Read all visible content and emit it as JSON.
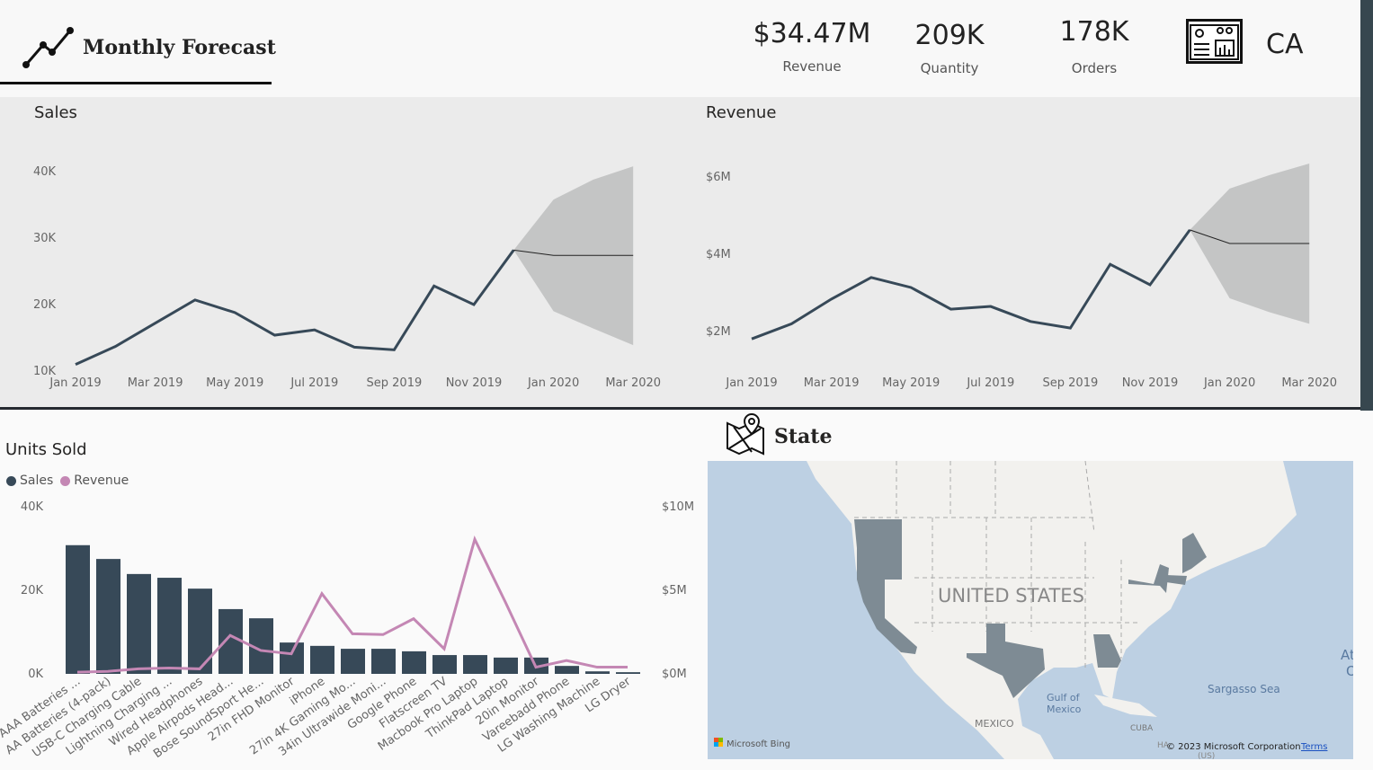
{
  "header": {
    "title": "Monthly Forecast",
    "kpis": [
      {
        "value": "$34.47M",
        "label": "Revenue"
      },
      {
        "value": "209K",
        "label": "Quantity"
      },
      {
        "value": "178K",
        "label": "Orders"
      }
    ],
    "state_code": "CA",
    "icons": [
      "line-chart-icon",
      "dashboard-icon"
    ]
  },
  "chart_data": [
    {
      "type": "line",
      "title": "Sales",
      "x": [
        "Jan 2019",
        "Feb 2019",
        "Mar 2019",
        "Apr 2019",
        "May 2019",
        "Jun 2019",
        "Jul 2019",
        "Aug 2019",
        "Sep 2019",
        "Oct 2019",
        "Nov 2019",
        "Dec 2019"
      ],
      "values": [
        11000,
        13700,
        17200,
        20700,
        18800,
        15400,
        16200,
        13600,
        13200,
        22800,
        20000,
        28200
      ],
      "forecast": {
        "x": [
          "Dec 2019",
          "Jan 2020",
          "Feb 2020",
          "Mar 2020"
        ],
        "values": [
          28200,
          27400,
          27400,
          27400
        ],
        "upper": [
          28200,
          35800,
          38800,
          40800
        ],
        "lower": [
          28200,
          19000,
          16400,
          13900
        ]
      },
      "xticks": [
        "Jan 2019",
        "Mar 2019",
        "May 2019",
        "Jul 2019",
        "Sep 2019",
        "Nov 2019",
        "Jan 2020",
        "Mar 2020"
      ],
      "yticks": [
        "10K",
        "20K",
        "30K",
        "40K"
      ],
      "ylim": [
        10000,
        40000
      ],
      "line_color": "#374958",
      "band_color": "#c4c5c5"
    },
    {
      "type": "line",
      "title": "Revenue",
      "x": [
        "Jan 2019",
        "Feb 2019",
        "Mar 2019",
        "Apr 2019",
        "May 2019",
        "Jun 2019",
        "Jul 2019",
        "Aug 2019",
        "Sep 2019",
        "Oct 2019",
        "Nov 2019",
        "Dec 2019"
      ],
      "values": [
        1.81,
        2.2,
        2.84,
        3.4,
        3.14,
        2.58,
        2.65,
        2.26,
        2.09,
        3.74,
        3.21,
        4.63
      ],
      "forecast": {
        "x": [
          "Dec 2019",
          "Jan 2020",
          "Feb 2020",
          "Mar 2020"
        ],
        "values": [
          4.63,
          4.28,
          4.28,
          4.28
        ],
        "upper": [
          4.63,
          5.7,
          6.05,
          6.35
        ],
        "lower": [
          4.63,
          2.86,
          2.5,
          2.2
        ]
      },
      "xticks": [
        "Jan 2019",
        "Mar 2019",
        "May 2019",
        "Jul 2019",
        "Sep 2019",
        "Nov 2019",
        "Jan 2020",
        "Mar 2020"
      ],
      "yticks": [
        "$2M",
        "$4M",
        "$6M"
      ],
      "ylim": [
        2,
        6
      ],
      "y_unit": "$M",
      "line_color": "#374958",
      "band_color": "#c4c5c5"
    },
    {
      "type": "bar",
      "title": "Units Sold",
      "categories": [
        "AAA Batteries ...",
        "AA Batteries (4-pack)",
        "USB-C Charging Cable",
        "Lightning Charging ...",
        "Wired Headphones",
        "Apple Airpods Head...",
        "Bose SoundSport He...",
        "27in FHD Monitor",
        "iPhone",
        "27in 4K Gaming Mo...",
        "34in Ultrawide Moni...",
        "Google Phone",
        "Flatscreen TV",
        "Macbook Pro Laptop",
        "ThinkPad Laptop",
        "20in Monitor",
        "Vareebadd Phone",
        "LG Washing Machine",
        "LG Dryer"
      ],
      "series": [
        {
          "name": "Sales",
          "type": "bar",
          "color": "#374958",
          "values": [
            30800,
            27500,
            23900,
            23000,
            20400,
            15500,
            13300,
            7500,
            6700,
            6000,
            6000,
            5400,
            4500,
            4500,
            3900,
            3900,
            1900,
            600,
            400
          ]
        },
        {
          "name": "Revenue",
          "type": "line",
          "color": "#c487b4",
          "unit": "$M",
          "values": [
            0.1,
            0.15,
            0.3,
            0.35,
            0.3,
            2.3,
            1.4,
            1.2,
            4.8,
            2.4,
            2.35,
            3.3,
            1.5,
            8.05,
            4.3,
            0.4,
            0.8,
            0.4,
            0.4
          ]
        }
      ],
      "yticks_left": [
        "0K",
        "20K",
        "40K"
      ],
      "ylim_left": [
        0,
        40000
      ],
      "yticks_right": [
        "$0M",
        "$5M",
        "$10M"
      ],
      "ylim_right": [
        0,
        10
      ],
      "legend": "top-left"
    }
  ],
  "legend": {
    "sales": "Sales",
    "revenue": "Revenue"
  },
  "map": {
    "title": "State",
    "country_label": "UNITED STATES",
    "labels": {
      "gulf": "Gulf of",
      "gulf2": "Mexico",
      "mexico": "MEXICO",
      "sargasso": "Sargasso Sea",
      "cuba": "CUBA",
      "atlantic": "At",
      "atlantic2": "O",
      "haiti": "HA",
      "us": "(US)"
    },
    "attribution": "Microsoft Bing",
    "copyright": "© 2023 Microsoft Corporation",
    "terms": "Terms",
    "highlighted_states": [
      "WA",
      "OR",
      "CA",
      "TX",
      "GA",
      "NY",
      "MA",
      "ME"
    ],
    "water_color": "#bdd0e3",
    "land_color": "#f2f1ee",
    "highlight_color": "#7e8b94"
  }
}
